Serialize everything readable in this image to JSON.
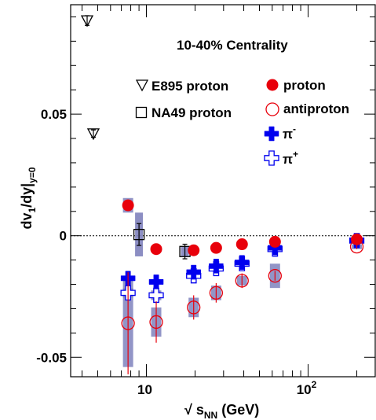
{
  "chart_data": {
    "type": "scatter",
    "title": "",
    "annotation": "10-40% Centrality",
    "xlabel": "√ s_NN (GeV)",
    "ylabel": "dv_1/dy|_y=0",
    "xscale": "log",
    "xlim": [
      3.4,
      260
    ],
    "ylim": [
      -0.058,
      0.095
    ],
    "x_ticks": [
      {
        "value": 10,
        "label": "10"
      },
      {
        "value": 100,
        "label": "10",
        "sup": "2"
      }
    ],
    "y_ticks": [
      {
        "value": 0.05,
        "label": "0.05"
      },
      {
        "value": 0,
        "label": "0"
      },
      {
        "value": -0.05,
        "label": "-0.05"
      }
    ],
    "reference_line": {
      "y": 0,
      "style": "dotted"
    },
    "legend": [
      {
        "label": "E895 proton",
        "marker": "open-triangle-down",
        "color": "#000000"
      },
      {
        "label": "NA49 proton",
        "marker": "open-square",
        "color": "#000000"
      },
      {
        "label": "proton",
        "marker": "filled-circle",
        "color": "#e8000b"
      },
      {
        "label": "antiproton",
        "marker": "open-circle",
        "color": "#e8000b"
      },
      {
        "label": "π",
        "sup": "-",
        "marker": "filled-cross",
        "color": "#0000ee"
      },
      {
        "label": "π",
        "sup": "+",
        "marker": "open-cross",
        "color": "#0000ee"
      }
    ],
    "series": [
      {
        "name": "E895 proton",
        "marker": "open-triangle-down",
        "color": "#000000",
        "points": [
          {
            "x": 4.3,
            "y": 0.0885,
            "err": 0.002
          },
          {
            "x": 4.7,
            "y": 0.042,
            "err": 0.0015
          }
        ]
      },
      {
        "name": "NA49 proton",
        "marker": "open-square",
        "color": "#000000",
        "points": [
          {
            "x": 9.0,
            "y": 0.0005,
            "err": 0.0045,
            "sys": 0.009
          },
          {
            "x": 17.3,
            "y": -0.0065,
            "err": 0.003,
            "sys": 0.002
          }
        ]
      },
      {
        "name": "proton",
        "marker": "filled-circle",
        "color": "#e8000b",
        "points": [
          {
            "x": 7.7,
            "y": 0.0125,
            "err": 0.001,
            "sys": 0.003
          },
          {
            "x": 11.5,
            "y": -0.0055,
            "err": 0.001,
            "sys": 0.001
          },
          {
            "x": 19.6,
            "y": -0.006,
            "err": 0.0008,
            "sys": 0.001
          },
          {
            "x": 27,
            "y": -0.005,
            "err": 0.0005,
            "sys": 0.001
          },
          {
            "x": 39,
            "y": -0.0035,
            "err": 0.0005,
            "sys": 0.001
          },
          {
            "x": 62.4,
            "y": -0.0025,
            "err": 0.0005,
            "sys": 0.001
          },
          {
            "x": 200,
            "y": -0.0015,
            "err": 0.0005,
            "sys": 0.001
          }
        ]
      },
      {
        "name": "antiproton",
        "marker": "open-circle",
        "color": "#e8000b",
        "points": [
          {
            "x": 7.7,
            "y": -0.036,
            "err": 0.021,
            "sys": 0.018
          },
          {
            "x": 11.5,
            "y": -0.0355,
            "err": 0.0085,
            "sys": 0.006
          },
          {
            "x": 19.6,
            "y": -0.0295,
            "err": 0.005,
            "sys": 0.004
          },
          {
            "x": 27,
            "y": -0.0235,
            "err": 0.004,
            "sys": 0.003
          },
          {
            "x": 39,
            "y": -0.0185,
            "err": 0.003,
            "sys": 0.002
          },
          {
            "x": 62.4,
            "y": -0.0165,
            "err": 0.002,
            "sys": 0.005
          },
          {
            "x": 200,
            "y": -0.0045,
            "err": 0.001,
            "sys": 0.001
          }
        ]
      },
      {
        "name": "π-",
        "marker": "filled-cross",
        "color": "#0000ee",
        "points": [
          {
            "x": 7.7,
            "y": -0.0175,
            "err": 0.0005,
            "sys": 0.001
          },
          {
            "x": 11.5,
            "y": -0.019,
            "err": 0.0005,
            "sys": 0.001
          },
          {
            "x": 19.6,
            "y": -0.015,
            "err": 0.0004,
            "sys": 0.001
          },
          {
            "x": 27,
            "y": -0.0125,
            "err": 0.0004,
            "sys": 0.001
          },
          {
            "x": 39,
            "y": -0.011,
            "err": 0.0003,
            "sys": 0.001
          },
          {
            "x": 62.4,
            "y": -0.005,
            "err": 0.0003,
            "sys": 0.001
          },
          {
            "x": 200,
            "y": -0.002,
            "err": 0.0003,
            "sys": 0.001
          }
        ]
      },
      {
        "name": "π+",
        "marker": "open-cross",
        "color": "#0000ee",
        "points": [
          {
            "x": 7.7,
            "y": -0.0235,
            "err": 0.0008,
            "sys": 0.002
          },
          {
            "x": 11.5,
            "y": -0.0245,
            "err": 0.0008,
            "sys": 0.002
          },
          {
            "x": 19.6,
            "y": -0.0165,
            "err": 0.0006,
            "sys": 0.001
          },
          {
            "x": 27,
            "y": -0.0135,
            "err": 0.0005,
            "sys": 0.001
          },
          {
            "x": 39,
            "y": -0.0115,
            "err": 0.0004,
            "sys": 0.001
          },
          {
            "x": 62.4,
            "y": -0.0055,
            "err": 0.0004,
            "sys": 0.001
          },
          {
            "x": 200,
            "y": -0.002,
            "err": 0.0003,
            "sys": 0.001
          }
        ]
      }
    ]
  }
}
